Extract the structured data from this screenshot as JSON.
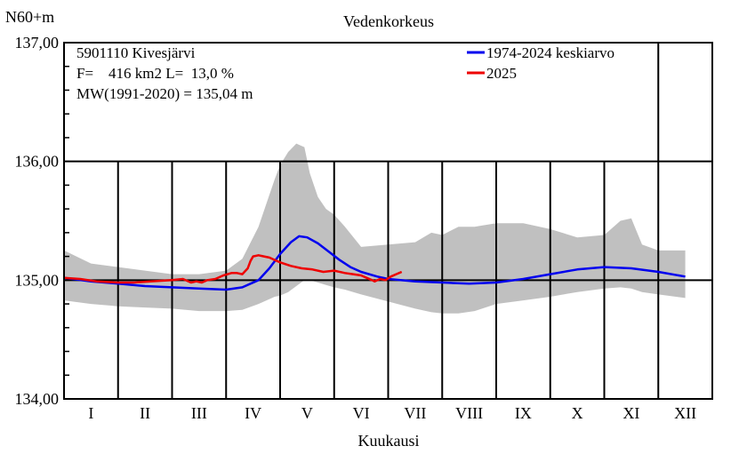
{
  "chart_data": {
    "type": "line",
    "title": "Vedenkorkeus",
    "ylabel": "N60+m",
    "xlabel": "Kuukausi",
    "ylim": [
      134.0,
      137.0
    ],
    "yticks": [
      "137,00",
      "136,00",
      "135,00",
      "134,00"
    ],
    "ytick_values": [
      137.0,
      136.0,
      135.0,
      134.0
    ],
    "categories": [
      "I",
      "II",
      "III",
      "IV",
      "V",
      "VI",
      "VII",
      "VIII",
      "IX",
      "X",
      "XI",
      "XII"
    ],
    "info": [
      "5901110 Kivesjärvi",
      "F=    416 km2 L=  13,0 %",
      "MW(1991-2020) = 135,04 m"
    ],
    "legend_position": "top-right",
    "grid": true,
    "colors": {
      "mean": "#0000ee",
      "current": "#ee0000",
      "band": "#c0c0c0"
    },
    "envelope": {
      "x": [
        1.0,
        1.5,
        2.0,
        2.5,
        3.0,
        3.5,
        4.0,
        4.3,
        4.6,
        4.9,
        5.0,
        5.15,
        5.3,
        5.45,
        5.55,
        5.7,
        5.85,
        6.0,
        6.2,
        6.5,
        7.0,
        7.5,
        7.8,
        8.0,
        8.3,
        8.6,
        9.0,
        9.5,
        10.0,
        10.5,
        11.0,
        11.3,
        11.5,
        11.7,
        12.0,
        12.5
      ],
      "high": [
        135.25,
        135.14,
        135.11,
        135.08,
        135.05,
        135.05,
        135.08,
        135.18,
        135.45,
        135.85,
        135.97,
        136.08,
        136.15,
        136.12,
        135.9,
        135.7,
        135.6,
        135.55,
        135.45,
        135.28,
        135.3,
        135.32,
        135.4,
        135.38,
        135.45,
        135.45,
        135.48,
        135.48,
        135.43,
        135.36,
        135.38,
        135.5,
        135.52,
        135.3,
        135.25,
        135.25
      ],
      "low": [
        134.83,
        134.8,
        134.78,
        134.77,
        134.76,
        134.74,
        134.74,
        134.75,
        134.8,
        134.86,
        134.87,
        134.9,
        134.95,
        135.0,
        135.0,
        134.98,
        134.96,
        134.94,
        134.92,
        134.88,
        134.82,
        134.76,
        134.73,
        134.72,
        134.72,
        134.74,
        134.8,
        134.83,
        134.86,
        134.9,
        134.93,
        134.94,
        134.93,
        134.9,
        134.88,
        134.85
      ]
    },
    "series": [
      {
        "name": "1974-2024 keskiarvo",
        "x": [
          1.0,
          1.5,
          2.0,
          2.5,
          3.0,
          3.5,
          4.0,
          4.3,
          4.6,
          4.8,
          5.0,
          5.2,
          5.35,
          5.5,
          5.7,
          5.9,
          6.1,
          6.3,
          6.5,
          6.8,
          7.0,
          7.5,
          8.0,
          8.5,
          9.0,
          9.5,
          10.0,
          10.5,
          11.0,
          11.5,
          12.0,
          12.5
        ],
        "values": [
          135.02,
          134.99,
          134.97,
          134.95,
          134.94,
          134.93,
          134.92,
          134.94,
          135.0,
          135.1,
          135.22,
          135.32,
          135.37,
          135.36,
          135.31,
          135.24,
          135.17,
          135.11,
          135.07,
          135.03,
          135.01,
          134.99,
          134.98,
          134.97,
          134.98,
          135.01,
          135.05,
          135.09,
          135.11,
          135.1,
          135.07,
          135.03
        ]
      },
      {
        "name": "2025",
        "x": [
          1.0,
          1.3,
          1.6,
          2.0,
          2.3,
          2.6,
          3.0,
          3.2,
          3.35,
          3.45,
          3.55,
          3.65,
          3.8,
          3.95,
          4.1,
          4.2,
          4.3,
          4.4,
          4.45,
          4.5,
          4.6,
          4.7,
          4.8,
          4.9,
          5.0,
          5.2,
          5.4,
          5.6,
          5.8,
          6.0,
          6.2,
          6.35,
          6.5,
          6.6,
          6.7,
          6.75,
          6.85,
          6.95,
          7.05,
          7.15,
          7.25
        ],
        "values": [
          135.02,
          135.01,
          134.99,
          134.98,
          134.98,
          134.99,
          135.0,
          135.01,
          134.98,
          134.99,
          134.98,
          135.0,
          135.01,
          135.04,
          135.06,
          135.06,
          135.05,
          135.1,
          135.16,
          135.2,
          135.21,
          135.2,
          135.19,
          135.17,
          135.15,
          135.12,
          135.1,
          135.09,
          135.07,
          135.08,
          135.06,
          135.05,
          135.04,
          135.02,
          135.0,
          134.99,
          135.01,
          135.0,
          135.03,
          135.05,
          135.07
        ]
      }
    ]
  }
}
